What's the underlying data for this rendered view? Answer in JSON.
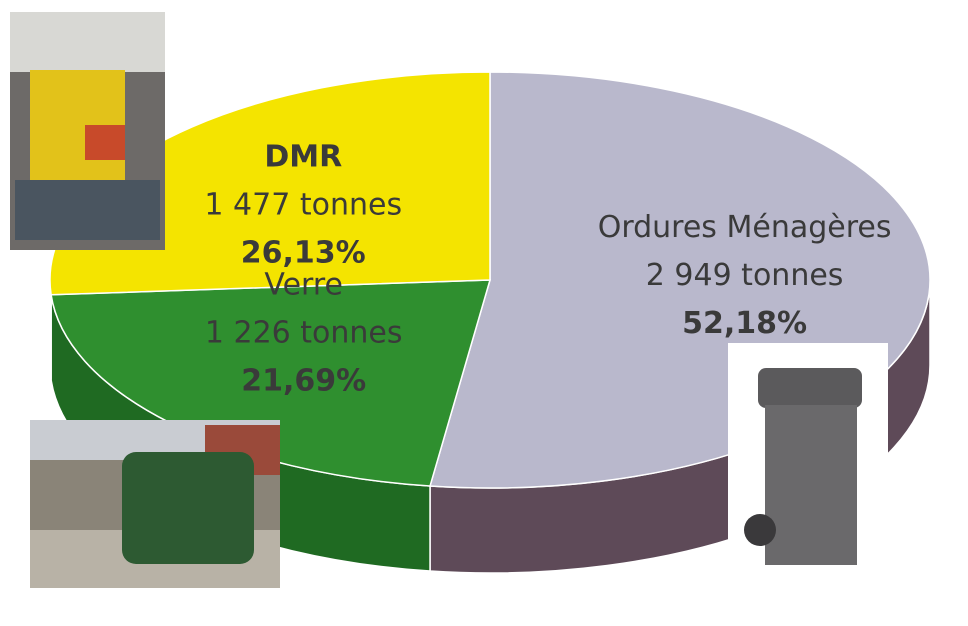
{
  "chart_data": {
    "type": "pie",
    "categories": [
      "Ordures Ménagères",
      "Verre",
      "DMR"
    ],
    "values": [
      2949,
      1226,
      1477
    ],
    "value_labels": [
      "2 949 tonnes",
      "1 226 tonnes",
      "1 477 tonnes"
    ],
    "percent": [
      52.18,
      21.69,
      26.13
    ],
    "percent_labels": [
      "52,18%",
      "21,69%",
      "26,13%"
    ],
    "colors": [
      "#b9b8cc",
      "#2f8f2f",
      "#f4e400"
    ],
    "side_colors": [
      "#5e4a58",
      "#1f6a22",
      "#c8b800"
    ]
  }
}
